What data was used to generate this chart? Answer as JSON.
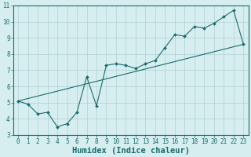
{
  "xlabel": "Humidex (Indice chaleur)",
  "ylabel": "",
  "background_color": "#d6eef0",
  "grid_color": "#b0cfd4",
  "line_color": "#1a6b6b",
  "xlim": [
    -0.5,
    23.5
  ],
  "ylim": [
    3,
    11
  ],
  "xticks": [
    0,
    1,
    2,
    3,
    4,
    5,
    6,
    7,
    8,
    9,
    10,
    11,
    12,
    13,
    14,
    15,
    16,
    17,
    18,
    19,
    20,
    21,
    22,
    23
  ],
  "yticks": [
    3,
    4,
    5,
    6,
    7,
    8,
    9,
    10,
    11
  ],
  "line1_x": [
    0,
    1,
    2,
    3,
    4,
    5,
    6,
    7,
    8,
    9,
    10,
    11,
    12,
    13,
    14,
    15,
    16,
    17,
    18,
    19,
    20,
    21,
    22,
    23
  ],
  "line1_y": [
    5.1,
    4.9,
    4.3,
    4.4,
    3.5,
    3.7,
    4.4,
    6.6,
    4.8,
    7.3,
    7.4,
    7.3,
    7.1,
    7.4,
    7.6,
    8.4,
    9.2,
    9.1,
    9.7,
    9.6,
    9.9,
    10.3,
    10.7,
    8.6
  ],
  "line2_x": [
    0,
    23
  ],
  "line2_y": [
    5.1,
    8.6
  ],
  "font_color": "#1a6b6b",
  "tick_fontsize": 5.5,
  "xlabel_fontsize": 7.5
}
